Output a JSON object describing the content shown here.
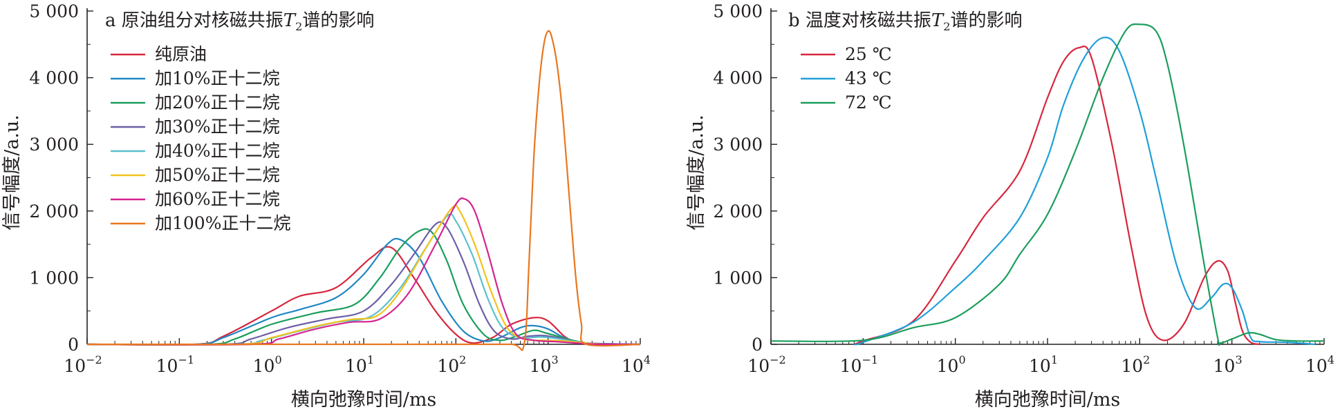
{
  "figure": {
    "xlabel": "横向弛豫时间/ms",
    "ylabel": "信号幅度/a.u."
  },
  "chart_data": [
    {
      "type": "line",
      "panel": "a",
      "title_prefix": "a 原油组分对核磁共振",
      "title_var": "T",
      "title_sub": "2",
      "title_suffix": "谱的影响",
      "xlabel": "横向弛豫时间/ms",
      "ylabel": "信号幅度/a.u.",
      "x_scale": "log",
      "xlim": [
        0.01,
        10000
      ],
      "ylim": [
        0,
        5000
      ],
      "x_ticks": [
        {
          "base": "10",
          "exp": "−2"
        },
        {
          "base": "10",
          "exp": "−1"
        },
        {
          "base": "10",
          "exp": "0"
        },
        {
          "base": "10",
          "exp": "1"
        },
        {
          "base": "10",
          "exp": "2"
        },
        {
          "base": "10",
          "exp": "3"
        },
        {
          "base": "10",
          "exp": "4"
        }
      ],
      "y_ticks": [
        "0",
        "1 000",
        "2 000",
        "3 000",
        "4 000",
        "5 000"
      ],
      "legend_position": "top-left",
      "series": [
        {
          "name": "纯原油",
          "color": "#d7263d",
          "x": [
            0.01,
            0.15,
            0.3,
            1,
            2,
            5,
            12,
            20,
            35,
            60,
            100,
            150,
            250,
            400,
            700,
            1000,
            1500,
            2000,
            3000,
            10000
          ],
          "y": [
            0,
            0,
            120,
            500,
            720,
            850,
            1300,
            1450,
            1000,
            500,
            150,
            20,
            100,
            300,
            400,
            350,
            120,
            40,
            0,
            0
          ]
        },
        {
          "name": "加10%正十二烷",
          "color": "#1f87c4",
          "x": [
            0.01,
            0.15,
            0.3,
            1,
            2,
            5,
            10,
            18,
            25,
            40,
            70,
            120,
            200,
            300,
            500,
            700,
            1000,
            1500,
            2500,
            10000
          ],
          "y": [
            0,
            0,
            100,
            400,
            520,
            700,
            1050,
            1500,
            1570,
            1300,
            650,
            200,
            50,
            100,
            250,
            280,
            230,
            100,
            20,
            0
          ]
        },
        {
          "name": "加20%正十二烷",
          "color": "#1a9e5c",
          "x": [
            0.01,
            0.2,
            0.4,
            1,
            3,
            8,
            15,
            25,
            40,
            55,
            80,
            120,
            200,
            300,
            450,
            700,
            1000,
            2000,
            3500,
            10000
          ],
          "y": [
            0,
            0,
            80,
            300,
            470,
            600,
            1000,
            1450,
            1700,
            1680,
            1250,
            600,
            150,
            60,
            120,
            210,
            160,
            50,
            0,
            0
          ]
        },
        {
          "name": "加30%正十二烷",
          "color": "#6c5fa8",
          "x": [
            0.01,
            0.3,
            0.6,
            1.5,
            4,
            10,
            20,
            35,
            60,
            80,
            120,
            180,
            260,
            400,
            600,
            900,
            1500,
            2500,
            10000
          ],
          "y": [
            0,
            0,
            80,
            250,
            380,
            500,
            900,
            1350,
            1800,
            1750,
            1250,
            600,
            200,
            80,
            120,
            130,
            80,
            20,
            0
          ]
        },
        {
          "name": "加40%正十二烷",
          "color": "#5bc0cf",
          "x": [
            0.01,
            0.4,
            0.8,
            2,
            5,
            12,
            25,
            45,
            80,
            100,
            150,
            220,
            320,
            500,
            800,
            1200,
            2000,
            3500,
            10000
          ],
          "y": [
            0,
            0,
            60,
            200,
            330,
            420,
            850,
            1400,
            1920,
            1850,
            1350,
            700,
            250,
            100,
            110,
            90,
            40,
            0,
            0
          ]
        },
        {
          "name": "加50%正十二烷",
          "color": "#f2c21b",
          "x": [
            0.01,
            0.45,
            1,
            3,
            7,
            14,
            25,
            50,
            90,
            110,
            160,
            240,
            360,
            550,
            900,
            1500,
            2500,
            4000,
            10000
          ],
          "y": [
            0,
            0,
            100,
            270,
            370,
            430,
            800,
            1500,
            2040,
            2000,
            1500,
            800,
            250,
            80,
            60,
            50,
            20,
            0,
            0
          ]
        },
        {
          "name": "加60%正十二烷",
          "color": "#d4238f",
          "x": [
            0.01,
            0.6,
            1.2,
            3,
            7,
            15,
            30,
            60,
            100,
            125,
            160,
            220,
            320,
            450,
            700,
            1200,
            2000,
            3500,
            10000
          ],
          "y": [
            0,
            0,
            80,
            230,
            330,
            380,
            750,
            1500,
            2100,
            2180,
            2000,
            1400,
            600,
            150,
            60,
            40,
            20,
            0,
            0
          ]
        },
        {
          "name": "加100%正十二烷",
          "color": "#e8771e",
          "x": [
            0.01,
            10,
            100,
            400,
            550,
            620,
            700,
            800,
            900,
            1000,
            1100,
            1250,
            1450,
            1700,
            2000,
            2300,
            2600,
            10000
          ],
          "y": [
            0,
            0,
            0,
            0,
            0,
            1200,
            2800,
            3900,
            4500,
            4700,
            4600,
            4200,
            3400,
            2200,
            1000,
            300,
            0,
            0
          ]
        }
      ]
    },
    {
      "type": "line",
      "panel": "b",
      "title_prefix": "b 温度对核磁共振",
      "title_var": "T",
      "title_sub": "2",
      "title_suffix": "谱的影响",
      "xlabel": "横向弛豫时间/ms",
      "ylabel": "信号幅度/a.u.",
      "x_scale": "log",
      "xlim": [
        0.01,
        10000
      ],
      "ylim": [
        0,
        5000
      ],
      "x_ticks": [
        {
          "base": "10",
          "exp": "−2"
        },
        {
          "base": "10",
          "exp": "−1"
        },
        {
          "base": "10",
          "exp": "0"
        },
        {
          "base": "10",
          "exp": "1"
        },
        {
          "base": "10",
          "exp": "2"
        },
        {
          "base": "10",
          "exp": "3"
        },
        {
          "base": "10",
          "exp": "4"
        }
      ],
      "y_ticks": [
        "0",
        "1 000",
        "2 000",
        "3 000",
        "4 000",
        "5 000"
      ],
      "legend_position": "top-left",
      "series": [
        {
          "name": "25 ℃",
          "color": "#d7263d",
          "x": [
            0.08,
            0.1,
            0.35,
            1,
            2,
            5,
            10,
            15,
            22,
            30,
            50,
            80,
            120,
            180,
            300,
            500,
            700,
            900,
            1100,
            1300,
            1600,
            2000
          ],
          "y": [
            0,
            50,
            350,
            1250,
            1900,
            2600,
            3700,
            4250,
            4450,
            4300,
            3000,
            1500,
            400,
            60,
            300,
            1000,
            1250,
            1100,
            600,
            200,
            30,
            0
          ]
        },
        {
          "name": "43 ℃",
          "color": "#1f9fd8",
          "x": [
            0.08,
            0.1,
            0.35,
            1,
            2,
            5,
            10,
            15,
            25,
            40,
            60,
            100,
            150,
            250,
            400,
            600,
            800,
            1000,
            1300,
            1600,
            2000,
            4000,
            8000
          ],
          "y": [
            0,
            30,
            330,
            850,
            1250,
            1900,
            2800,
            3600,
            4300,
            4600,
            4400,
            3500,
            2500,
            1200,
            550,
            700,
            900,
            850,
            500,
            100,
            40,
            30,
            0
          ]
        },
        {
          "name": "72 ℃",
          "color": "#1a9e5c",
          "x": [
            0.01,
            0.1,
            0.35,
            1,
            3,
            5,
            10,
            20,
            40,
            70,
            100,
            150,
            200,
            300,
            500,
            700,
            750,
            1000,
            1500,
            2000,
            3000,
            5000,
            10000
          ],
          "y": [
            50,
            60,
            250,
            400,
            900,
            1350,
            1950,
            2900,
            4000,
            4700,
            4800,
            4700,
            4200,
            3000,
            1200,
            100,
            20,
            80,
            170,
            150,
            70,
            50,
            50
          ]
        }
      ]
    }
  ]
}
